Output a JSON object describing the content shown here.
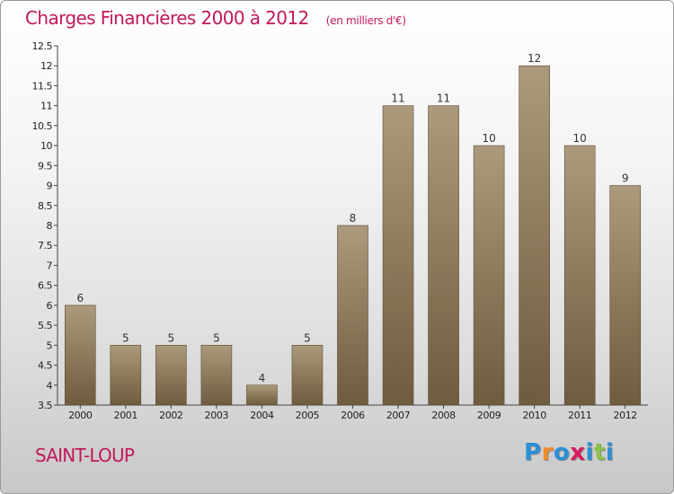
{
  "chart_data": {
    "type": "bar",
    "title": "Charges Financières 2000 à 2012",
    "subtitle": "(en milliers d'€)",
    "categories": [
      "2000",
      "2001",
      "2002",
      "2003",
      "2004",
      "2005",
      "2006",
      "2007",
      "2008",
      "2009",
      "2010",
      "2011",
      "2012"
    ],
    "values": [
      6,
      5,
      5,
      5,
      4,
      5,
      8,
      11,
      11,
      10,
      12,
      10,
      9
    ],
    "value_labels": [
      "6",
      "5",
      "5",
      "5",
      "4",
      "5",
      "8",
      "11",
      "11",
      "10",
      "12",
      "10",
      "9"
    ],
    "ylim": [
      3.5,
      12.5
    ],
    "yticks": [
      3.5,
      4,
      4.5,
      5,
      5.5,
      6,
      6.5,
      7,
      7.5,
      8,
      8.5,
      9,
      9.5,
      10,
      10.5,
      11,
      11.5,
      12,
      12.5
    ],
    "ytick_labels": [
      "3.5",
      "4",
      "4.5",
      "5",
      "5.5",
      "6",
      "6.5",
      "7",
      "7.5",
      "8",
      "8.5",
      "9",
      "9.5",
      "10",
      "10.5",
      "11",
      "11.5",
      "12",
      "12.5"
    ],
    "grid": false,
    "legend": "none",
    "xlabel": "",
    "ylabel": ""
  },
  "commune": "SAINT-LOUP",
  "logo": {
    "letters": [
      "P",
      "r",
      "o",
      "x",
      "i",
      "t",
      "i"
    ],
    "colors": [
      "#2b8fd6",
      "#f28c28",
      "#2b8fd6",
      "#d81b60",
      "#2b8fd6",
      "#8bc34a",
      "#2b8fd6"
    ]
  },
  "colors": {
    "accent": "#c2185b",
    "bar_top": "#ab9a7c",
    "bar_bottom": "#6f5b3f",
    "axis": "#444444"
  }
}
